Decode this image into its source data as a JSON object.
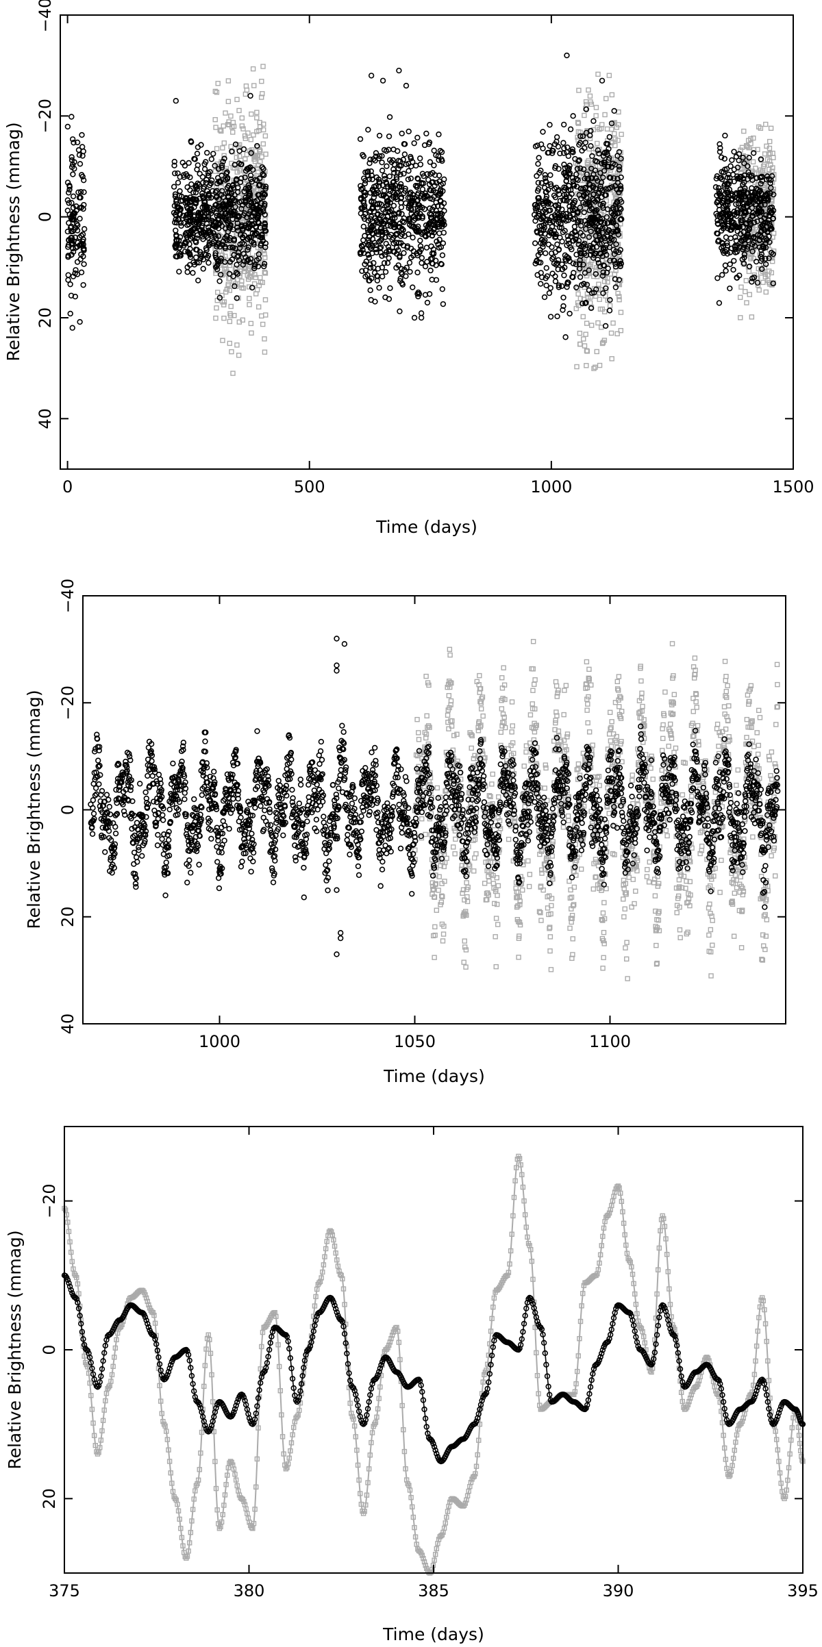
{
  "chart_data": [
    {
      "type": "scatter",
      "title": "",
      "xlabel": "Time (days)",
      "ylabel": "Relative Brightness (mmag)",
      "xlim": [
        -15,
        1500
      ],
      "ylim": [
        -40,
        50
      ],
      "y_inverted": true,
      "xticks": [
        0,
        500,
        1000,
        1500
      ],
      "yticks": [
        -40,
        -20,
        0,
        20,
        40
      ],
      "xtick_labels": [
        "0",
        "500",
        "1000",
        "1500"
      ],
      "ytick_labels": [
        "−40",
        "−20",
        "0",
        "20",
        "40"
      ],
      "grid": false,
      "legend": "none",
      "series": [
        {
          "marker": "open-circle",
          "color": "#000000",
          "segments": [
            [
              0,
              35
            ],
            [
              220,
              410
            ],
            [
              605,
              780
            ],
            [
              965,
              1145
            ],
            [
              1340,
              1460
            ]
          ],
          "envelope": [
            [
              -27,
              22
            ],
            [
              -15,
              22
            ],
            [
              -29,
              20
            ],
            [
              -25,
              27
            ],
            [
              -20,
              18
            ]
          ],
          "outliers": [
            [
              224,
              -23
            ],
            [
              255,
              -15
            ],
            [
              378,
              -24
            ],
            [
              628,
              -28
            ],
            [
              652,
              -27
            ],
            [
              685,
              -29
            ],
            [
              700,
              -26
            ],
            [
              1032,
              -32
            ],
            [
              1045,
              -20
            ],
            [
              1060,
              -16
            ],
            [
              1105,
              -27
            ],
            [
              1130,
              -21
            ]
          ]
        },
        {
          "marker": "open-square",
          "color": "#aaaaaa",
          "segments": [
            [
              305,
              410
            ],
            [
              1050,
              1145
            ],
            [
              1390,
              1460
            ]
          ],
          "envelope": [
            [
              -33,
              43
            ],
            [
              -40,
              38
            ],
            [
              -32,
              25
            ]
          ]
        }
      ]
    },
    {
      "type": "scatter",
      "title": "",
      "xlabel": "Time (days)",
      "ylabel": "Relative Brightness (mmag)",
      "xlim": [
        965,
        1145
      ],
      "ylim": [
        -40,
        40
      ],
      "y_inverted": true,
      "xticks": [
        1000,
        1050,
        1100
      ],
      "yticks": [
        -40,
        -20,
        0,
        20,
        40
      ],
      "xtick_labels": [
        "1000",
        "1050",
        "1100"
      ],
      "ytick_labels": [
        "−40",
        "−20",
        "0",
        "20",
        "40"
      ],
      "grid": false,
      "legend": "none",
      "series": [
        {
          "marker": "open-circle",
          "color": "#000000",
          "x_range": [
            967,
            1143
          ],
          "envelope": [
            -24,
            20
          ],
          "outliers": [
            [
              1030,
              -32
            ],
            [
              1032,
              -31
            ],
            [
              1030,
              -27
            ],
            [
              1030,
              -26
            ],
            [
              1030,
              15
            ],
            [
              1031,
              23
            ],
            [
              1031,
              24
            ],
            [
              1030,
              27
            ]
          ]
        },
        {
          "marker": "open-square",
          "color": "#aaaaaa",
          "x_range": [
            1050,
            1143
          ],
          "envelope": [
            -38,
            38
          ]
        }
      ]
    },
    {
      "type": "line",
      "title": "",
      "xlabel": "Time (days)",
      "ylabel": "Relative Brightness (mmag)",
      "xlim": [
        375,
        395
      ],
      "ylim": [
        -30,
        30
      ],
      "y_inverted": true,
      "xticks": [
        375,
        380,
        385,
        390,
        395
      ],
      "yticks": [
        -20,
        0,
        20
      ],
      "xtick_labels": [
        "375",
        "380",
        "385",
        "390",
        "395"
      ],
      "ytick_labels": [
        "−20",
        "0",
        "20"
      ],
      "grid": false,
      "legend": "none",
      "series": [
        {
          "marker": "open-circle",
          "color": "#000000",
          "x": [
            375,
            375.3,
            375.6,
            375.9,
            376.2,
            376.5,
            376.8,
            377.1,
            377.4,
            377.7,
            378,
            378.3,
            378.6,
            378.9,
            379.2,
            379.5,
            379.8,
            380.1,
            380.4,
            380.7,
            381,
            381.3,
            381.6,
            381.9,
            382.2,
            382.5,
            382.8,
            383.1,
            383.4,
            383.7,
            384,
            384.3,
            384.6,
            384.9,
            385.2,
            385.5,
            385.8,
            386.1,
            386.4,
            386.7,
            387,
            387.3,
            387.6,
            387.9,
            388.2,
            388.5,
            388.8,
            389.1,
            389.4,
            389.7,
            390,
            390.3,
            390.6,
            390.9,
            391.2,
            391.5,
            391.8,
            392.1,
            392.4,
            392.7,
            393,
            393.3,
            393.6,
            393.9,
            394.2,
            394.5,
            394.8,
            395
          ],
          "y": [
            -10,
            -7,
            0,
            5,
            -2,
            -4,
            -6,
            -5,
            -2,
            4,
            1,
            0,
            7,
            11,
            7,
            9,
            6,
            10,
            3,
            -3,
            -2,
            7,
            0,
            -5,
            -7,
            -4,
            5,
            10,
            4,
            1,
            3,
            5,
            4,
            12,
            15,
            13,
            12,
            10,
            6,
            -2,
            -1,
            0,
            -7,
            -3,
            7,
            6,
            7,
            8,
            2,
            -1,
            -6,
            -5,
            0,
            2,
            -6,
            -2,
            5,
            3,
            2,
            4,
            10,
            8,
            7,
            4,
            10,
            7,
            8,
            10
          ]
        },
        {
          "marker": "open-square",
          "color": "#aaaaaa",
          "x": [
            375,
            375.3,
            375.6,
            375.9,
            376.2,
            376.5,
            376.8,
            377.1,
            377.4,
            377.7,
            378,
            378.3,
            378.6,
            378.9,
            379.2,
            379.5,
            379.8,
            380.1,
            380.4,
            380.7,
            381,
            381.3,
            381.6,
            381.9,
            382.2,
            382.5,
            382.8,
            383.1,
            383.4,
            383.7,
            384,
            384.3,
            384.6,
            384.9,
            385.2,
            385.5,
            385.8,
            386.1,
            386.4,
            386.7,
            387,
            387.3,
            387.6,
            387.9,
            388.2,
            388.5,
            388.8,
            389.1,
            389.4,
            389.7,
            390,
            390.3,
            390.6,
            390.9,
            391.2,
            391.5,
            391.8,
            392.1,
            392.4,
            392.7,
            393,
            393.3,
            393.6,
            393.9,
            394.2,
            394.5,
            394.8,
            395
          ],
          "y": [
            -19,
            -10,
            2,
            14,
            5,
            -3,
            -7,
            -8,
            -5,
            10,
            20,
            28,
            18,
            -2,
            24,
            15,
            20,
            24,
            -3,
            -5,
            16,
            9,
            0,
            -9,
            -16,
            -10,
            9,
            22,
            10,
            0,
            -3,
            18,
            27,
            30,
            25,
            20,
            21,
            17,
            3,
            -8,
            -10,
            -26,
            -14,
            8,
            7,
            6,
            6,
            -9,
            -10,
            -18,
            -22,
            -12,
            -3,
            3,
            -18,
            -3,
            8,
            5,
            1,
            6,
            17,
            10,
            6,
            -7,
            10,
            20,
            8,
            15
          ]
        }
      ]
    }
  ]
}
